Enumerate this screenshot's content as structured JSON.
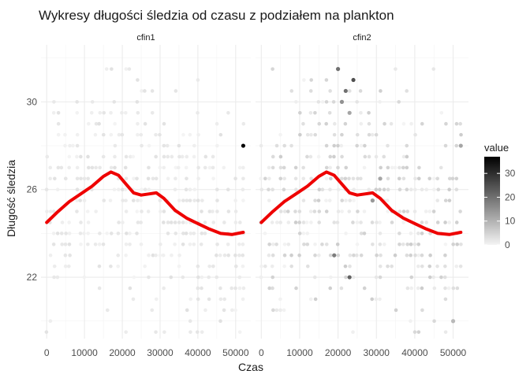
{
  "chart_data": {
    "type": "scatter",
    "title": "Wykresy długości śledzia od czasu z podziałem na plankton",
    "xlabel": "Czas",
    "ylabel": "Długość śledzia",
    "x_ticks": [
      0,
      10000,
      20000,
      30000,
      40000,
      50000
    ],
    "x_tick_labels": [
      "0",
      "10000",
      "20000",
      "30000",
      "40000",
      "50000"
    ],
    "y_ticks": [
      22,
      26,
      30
    ],
    "xlim": [
      -1500,
      54000
    ],
    "ylim": [
      19.2,
      32.6
    ],
    "legend": {
      "title": "value",
      "ticks": [
        0,
        10,
        20,
        30
      ],
      "range": [
        0,
        37
      ],
      "position": "right"
    },
    "colors": {
      "smooth": "#ee0000",
      "point_low": "#f4f4f4",
      "point_high": "#000000",
      "grid": "#ebebeb"
    },
    "panels": [
      {
        "name": "cfin1",
        "smooth": {
          "x": [
            0,
            3000,
            6000,
            9000,
            12000,
            15000,
            17000,
            19000,
            21000,
            23000,
            25000,
            27000,
            29000,
            31000,
            34000,
            37000,
            40000,
            43000,
            46000,
            49000,
            52000
          ],
          "y": [
            24.5,
            25.0,
            25.45,
            25.8,
            26.15,
            26.6,
            26.8,
            26.65,
            26.25,
            25.85,
            25.75,
            25.8,
            25.85,
            25.6,
            25.05,
            24.7,
            24.45,
            24.2,
            24.0,
            23.95,
            24.05
          ]
        },
        "highlights": [
          {
            "x": 52000,
            "y": 28.0,
            "value": 37
          }
        ]
      },
      {
        "name": "cfin2",
        "smooth": {
          "x": [
            0,
            3000,
            6000,
            9000,
            12000,
            15000,
            17000,
            19000,
            21000,
            23000,
            25000,
            27000,
            29000,
            31000,
            34000,
            37000,
            40000,
            43000,
            46000,
            49000,
            52000
          ],
          "y": [
            24.5,
            25.0,
            25.45,
            25.8,
            26.15,
            26.6,
            26.8,
            26.65,
            26.25,
            25.85,
            25.75,
            25.8,
            25.85,
            25.6,
            25.05,
            24.7,
            24.45,
            24.2,
            24.0,
            23.95,
            24.05
          ]
        },
        "highlights": [
          {
            "x": 20000,
            "y": 31.5,
            "value": 20
          },
          {
            "x": 24000,
            "y": 31.0,
            "value": 25
          },
          {
            "x": 22000,
            "y": 30.5,
            "value": 20
          },
          {
            "x": 21000,
            "y": 30.0,
            "value": 15
          },
          {
            "x": 23000,
            "y": 29.5,
            "value": 12
          },
          {
            "x": 19000,
            "y": 23.0,
            "value": 18
          },
          {
            "x": 23000,
            "y": 22.0,
            "value": 22
          },
          {
            "x": 29000,
            "y": 25.5,
            "value": 14
          },
          {
            "x": 31000,
            "y": 26.5,
            "value": 12
          },
          {
            "x": 52000,
            "y": 28.0,
            "value": 12
          },
          {
            "x": 50000,
            "y": 20.0,
            "value": 9
          }
        ]
      }
    ]
  }
}
